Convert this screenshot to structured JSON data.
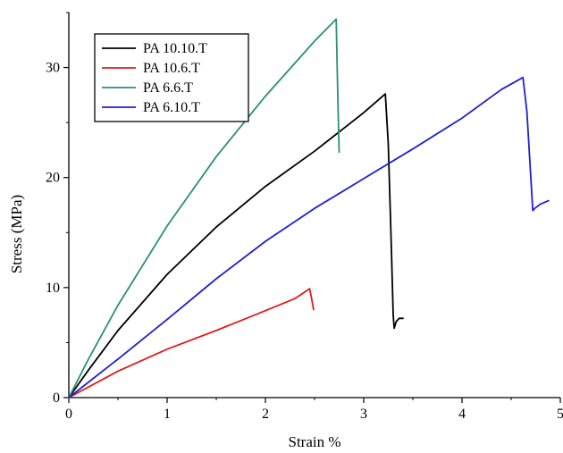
{
  "chart_data": {
    "type": "line",
    "title": "",
    "xlabel": "Strain %",
    "ylabel": "Stress (MPa)",
    "xlim": [
      0,
      5
    ],
    "ylim": [
      0,
      35
    ],
    "xticks": [
      0,
      1,
      2,
      3,
      4,
      5
    ],
    "yticks": [
      0,
      10,
      20,
      30
    ],
    "grid": false,
    "legend_position": "top-left",
    "series": [
      {
        "name": "PA 10.10.T",
        "color": "#000000",
        "x": [
          0.0,
          0.2,
          0.5,
          1.0,
          1.5,
          2.0,
          2.5,
          3.0,
          3.22,
          3.25,
          3.28,
          3.3,
          3.31,
          3.33,
          3.36,
          3.4
        ],
        "y": [
          0.0,
          2.5,
          6.1,
          11.2,
          15.5,
          19.2,
          22.4,
          25.9,
          27.6,
          23.0,
          14.0,
          7.5,
          6.3,
          6.9,
          7.2,
          7.2
        ]
      },
      {
        "name": "PA 10.6.T",
        "color": "#e31a1c",
        "x": [
          0.0,
          0.5,
          1.0,
          1.5,
          2.0,
          2.3,
          2.45,
          2.47,
          2.49
        ],
        "y": [
          0.0,
          2.4,
          4.4,
          6.1,
          7.9,
          9.0,
          9.9,
          9.0,
          8.0
        ]
      },
      {
        "name": "PA 6.6.T",
        "color": "#2a8f77",
        "x": [
          0.0,
          0.2,
          0.5,
          1.0,
          1.5,
          2.0,
          2.5,
          2.72,
          2.73,
          2.74,
          2.75
        ],
        "y": [
          0.0,
          3.5,
          8.4,
          15.6,
          21.9,
          27.4,
          32.4,
          34.4,
          30.0,
          26.0,
          22.3
        ]
      },
      {
        "name": "PA 6.10.T",
        "color": "#1f1fd6",
        "x": [
          0.0,
          0.5,
          1.0,
          1.5,
          2.0,
          2.5,
          3.0,
          3.5,
          4.0,
          4.4,
          4.62,
          4.66,
          4.7,
          4.72,
          4.74,
          4.8,
          4.88
        ],
        "y": [
          0.0,
          3.5,
          7.1,
          10.8,
          14.2,
          17.2,
          19.9,
          22.6,
          25.4,
          28.0,
          29.1,
          26.0,
          20.0,
          17.0,
          17.2,
          17.6,
          17.9
        ]
      }
    ]
  }
}
